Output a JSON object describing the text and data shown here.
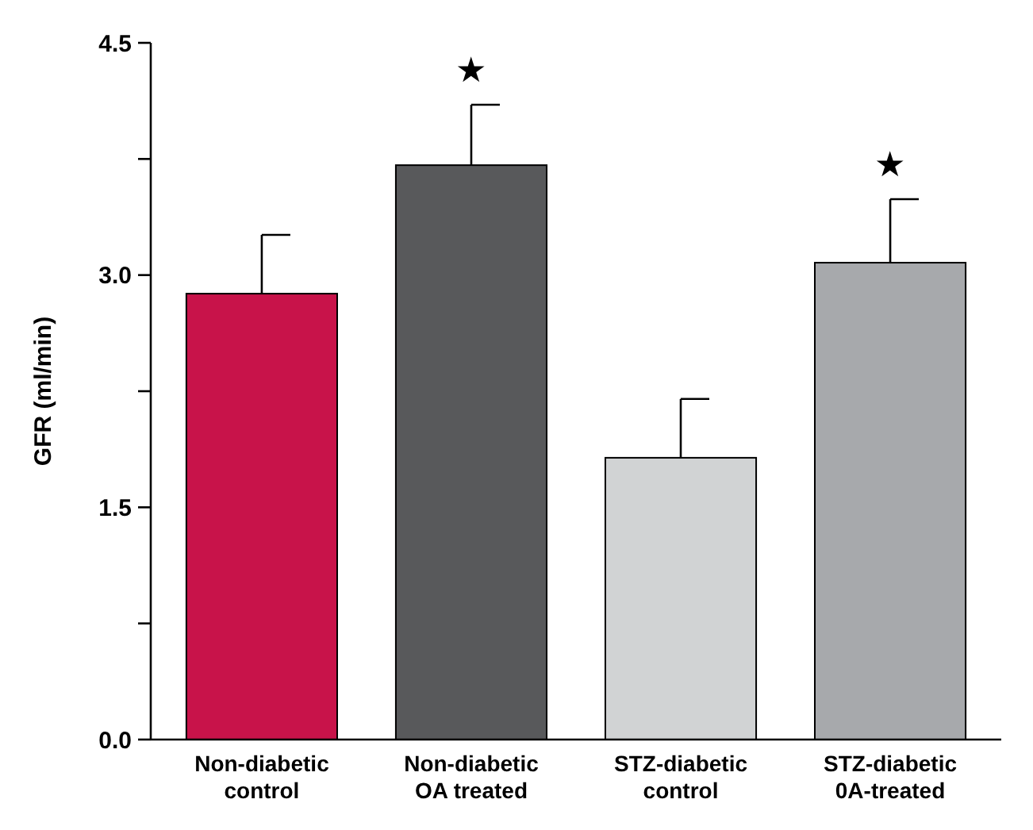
{
  "chart_data": {
    "type": "bar",
    "ylabel": "GFR (ml/min)",
    "categories": [
      "Non-diabetic\ncontrol",
      "Non-diabetic\nOA treated",
      "STZ-diabetic\ncontrol",
      "STZ-diabetic\n0A-treated"
    ],
    "values": [
      2.88,
      3.71,
      1.82,
      3.08
    ],
    "colors": [
      "#c8134a",
      "#58595b",
      "#d1d3d4",
      "#a7a9ac"
    ],
    "errors": [
      [
        2.88,
        3.26
      ],
      [
        3.71,
        4.1
      ],
      [
        1.82,
        2.2
      ],
      [
        3.08,
        3.49
      ]
    ],
    "ylim": [
      0,
      4.5
    ],
    "yticks": [
      {
        "value": 0,
        "label": "0.0"
      },
      {
        "value": 0.75,
        "label": null
      },
      {
        "value": 1.5,
        "label": "1.5"
      },
      {
        "value": 2.25,
        "label": null
      },
      {
        "value": 3,
        "label": "3.0"
      },
      {
        "value": 3.75,
        "label": null
      },
      {
        "value": 4.5,
        "label": "4.5"
      }
    ],
    "annotations": [
      "★",
      "★"
    ]
  }
}
